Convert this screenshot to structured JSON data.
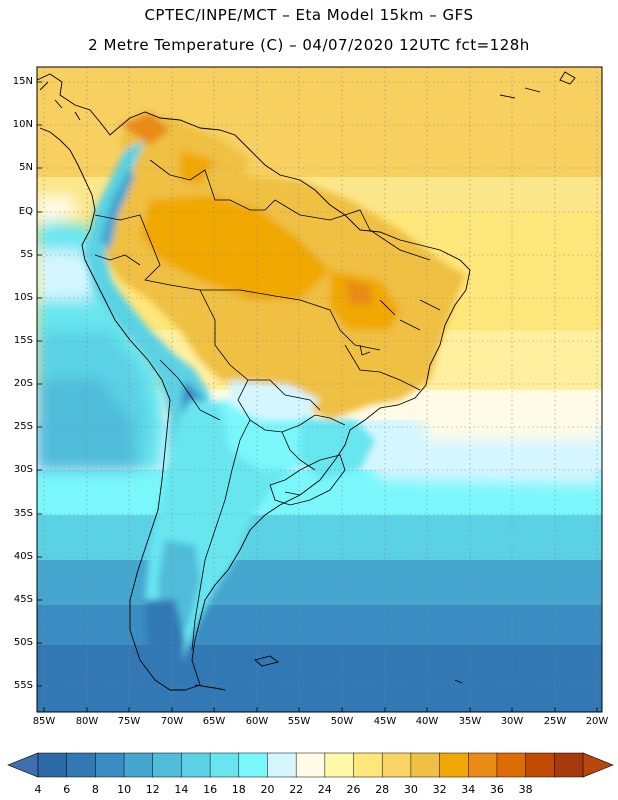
{
  "title_line1": "CPTEC/INPE/MCT –  Eta Model 15km – GFS",
  "title_line2": "2 Metre Temperature (C) – 04/07/2020 12UTC fct=128h",
  "lat_labels": [
    "15N",
    "10N",
    "5N",
    "EQ",
    "5S",
    "10S",
    "15S",
    "20S",
    "25S",
    "30S",
    "35S",
    "40S",
    "45S",
    "50S",
    "55S"
  ],
  "lon_labels": [
    "85W",
    "80W",
    "75W",
    "70W",
    "65W",
    "60W",
    "55W",
    "50W",
    "45W",
    "40W",
    "35W",
    "30W",
    "25W",
    "20W"
  ],
  "colorbar": {
    "labels": [
      "4",
      "6",
      "8",
      "10",
      "12",
      "14",
      "16",
      "18",
      "20",
      "22",
      "24",
      "26",
      "28",
      "30",
      "32",
      "34",
      "36",
      "38"
    ],
    "colors": [
      "#2e6aa8",
      "#3278b5",
      "#3a8dc2",
      "#45a6cf",
      "#4fbcda",
      "#5ad1e5",
      "#67e6f0",
      "#7af7fb",
      "#d4f6ff",
      "#fffbe6",
      "#fff8a8",
      "#fde67a",
      "#f8d465",
      "#efc043",
      "#f1a806",
      "#e98b14",
      "#dc6d06",
      "#c34a05",
      "#a63a0c"
    ],
    "min_arrow_color": "#3d70ad",
    "max_arrow_color": "#b8470c"
  }
}
